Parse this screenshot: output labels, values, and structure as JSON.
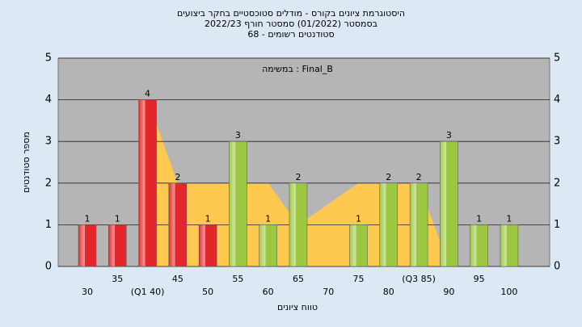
{
  "chart_data": {
    "type": "bar",
    "title_lines": [
      "היסטוגרמת ציונים בקורס - מודלים סטוכסטיים בחקר ביצועים",
      "בסמסטר  (01/2022)  סמסטר חורף  2022/23",
      "סטודנטים רשומים - 68"
    ],
    "annotation": "במשימה : Final_B",
    "x_label": "טווח ציונים",
    "y_label": "מספר סטודנטים",
    "categories": [
      "30",
      "35",
      "(Q1 40)",
      "45",
      "50",
      "55",
      "60",
      "65",
      "70",
      "75",
      "80",
      "(Q3 85)",
      "90",
      "95",
      "100"
    ],
    "values": [
      1,
      1,
      4,
      2,
      1,
      3,
      1,
      2,
      0,
      1,
      2,
      2,
      3,
      1,
      1
    ],
    "value_labels": [
      "1",
      "1",
      "4",
      "2",
      "1",
      "3",
      "1",
      "2",
      null,
      "1",
      "2",
      "2",
      "3",
      "1",
      "1"
    ],
    "colors": [
      "#e3262b",
      "#e3262b",
      "#e3262b",
      "#e3262b",
      "#e3262b",
      "#9bc741",
      "#9bc741",
      "#9bc741",
      "#9bc741",
      "#9bc741",
      "#9bc741",
      "#9bc741",
      "#9bc741",
      "#9bc741",
      "#9bc741"
    ],
    "area": {
      "color": "#ffc94f",
      "values": [
        null,
        null,
        4,
        2,
        2,
        2,
        2,
        1,
        1.5,
        2,
        2,
        2,
        0,
        null,
        null
      ]
    },
    "ylim": [
      0,
      5
    ],
    "yticks": [
      0,
      1,
      2,
      3,
      4,
      5
    ],
    "grid": true
  }
}
